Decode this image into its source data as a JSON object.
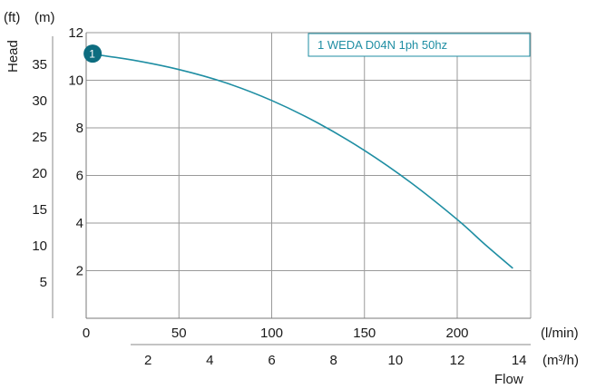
{
  "chart_data": {
    "type": "line",
    "title": "",
    "ylabel": "Head",
    "xlabel": "Flow",
    "y_units_ft": "(ft)",
    "y_units_m": "(m)",
    "x_units_lmin": "(l/min)",
    "x_units_m3h": "(m³/h)",
    "ylim_m": [
      0,
      12
    ],
    "xlim_lmin": [
      0,
      235
    ],
    "grid": true,
    "y_ticks_m": [
      "2",
      "4",
      "6",
      "8",
      "10",
      "12"
    ],
    "y_ticks_ft": [
      "5",
      "10",
      "15",
      "20",
      "25",
      "30",
      "35"
    ],
    "x_ticks_lmin": [
      "0",
      "50",
      "100",
      "150",
      "200"
    ],
    "x_ticks_m3h": [
      "2",
      "4",
      "6",
      "8",
      "10",
      "12",
      "14"
    ],
    "series": [
      {
        "name": "1 WEDA D04N 1ph 50hz",
        "marker_label": "1",
        "color": "#1f8ea3",
        "x": [
          3,
          25,
          50,
          75,
          100,
          125,
          150,
          175,
          200,
          215,
          230
        ],
        "y": [
          11.1,
          10.85,
          10.45,
          9.9,
          9.15,
          8.2,
          7.05,
          5.7,
          4.15,
          3.1,
          2.1
        ]
      }
    ]
  }
}
